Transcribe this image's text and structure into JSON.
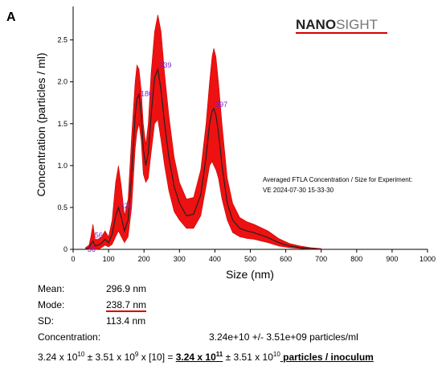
{
  "panel_label": "A",
  "logo": {
    "bold": "NANO",
    "light": "SIGHT"
  },
  "annotation": {
    "line1": "Averaged FTLA Concentration / Size for Experiment:",
    "line2": "VE 2024-07-30 15-33-30"
  },
  "stats": [
    {
      "label": "Mean:",
      "value": "296.9 nm"
    },
    {
      "label": "Mode:",
      "value": "238.7 nm"
    },
    {
      "label": "SD:",
      "value": "113.4 nm"
    }
  ],
  "concentration": {
    "label": "Concentration:",
    "value": "3.24e+10 +/- 3.51e+09 particles/ml"
  },
  "formula": {
    "a_mant": "3.24 x 10",
    "a_exp": "10",
    "pm1": " ± ",
    "b_mant": "3.51 x 10",
    "b_exp": "9",
    "mult": " x [10] = ",
    "c_mant": "3.24 x 10",
    "c_exp": "11",
    "pm2": " ± ",
    "d_mant": "3.51 x 10",
    "d_exp": "10",
    "tail": " particles / inoculum"
  },
  "colors": {
    "band": "#ee1111",
    "mean_line": "#222222",
    "peak_label": "#7a1fd6",
    "underline": "#d40000"
  },
  "chart_data": {
    "type": "line",
    "xlabel": "Size (nm)",
    "ylabel": "Concentration (particles / ml)",
    "xlim": [
      0,
      1000
    ],
    "ylim": [
      0,
      2.9
    ],
    "x_ticks": [
      0,
      100,
      200,
      300,
      400,
      500,
      600,
      700,
      800,
      900,
      1000
    ],
    "y_ticks": [
      0,
      0.5,
      1.0,
      1.5,
      2.0,
      2.5
    ],
    "y_tick_labels": [
      "0",
      "0.5",
      "1.0",
      "1.5",
      "2.0",
      "2.5"
    ],
    "series": [
      {
        "x": [
          35,
          45,
          50,
          56,
          62,
          70,
          80,
          90,
          100,
          110,
          120,
          128,
          136,
          145,
          155,
          165,
          175,
          180,
          186,
          192,
          198,
          205,
          212,
          220,
          230,
          239,
          248,
          258,
          270,
          285,
          300,
          320,
          340,
          360,
          375,
          385,
          392,
          397,
          403,
          410,
          420,
          435,
          450,
          470,
          490,
          510,
          530,
          550,
          580,
          610,
          640,
          670,
          700
        ],
        "y": [
          0,
          0.02,
          0.06,
          0.1,
          0.04,
          0.05,
          0.07,
          0.12,
          0.08,
          0.18,
          0.4,
          0.5,
          0.38,
          0.22,
          0.35,
          0.9,
          1.6,
          1.8,
          1.85,
          1.6,
          1.2,
          1.0,
          1.15,
          1.6,
          2.05,
          2.15,
          1.9,
          1.5,
          1.1,
          0.75,
          0.55,
          0.4,
          0.42,
          0.65,
          1.1,
          1.5,
          1.65,
          1.68,
          1.6,
          1.4,
          1.0,
          0.55,
          0.35,
          0.25,
          0.22,
          0.2,
          0.17,
          0.14,
          0.08,
          0.04,
          0.02,
          0.01,
          0
        ],
        "upper": [
          0.02,
          0.05,
          0.15,
          0.3,
          0.12,
          0.12,
          0.15,
          0.22,
          0.15,
          0.35,
          0.8,
          1.0,
          0.75,
          0.4,
          0.6,
          1.35,
          2.0,
          2.2,
          2.15,
          1.9,
          1.5,
          1.25,
          1.5,
          2.1,
          2.6,
          2.8,
          2.6,
          2.1,
          1.6,
          1.1,
          0.8,
          0.6,
          0.62,
          0.95,
          1.5,
          2.0,
          2.3,
          2.4,
          2.3,
          2.0,
          1.5,
          0.85,
          0.55,
          0.38,
          0.33,
          0.3,
          0.26,
          0.22,
          0.13,
          0.07,
          0.04,
          0.02,
          0.01
        ],
        "lower": [
          0,
          0,
          0,
          0,
          0,
          0,
          0.02,
          0.05,
          0.03,
          0.06,
          0.15,
          0.22,
          0.15,
          0.08,
          0.15,
          0.5,
          1.2,
          1.4,
          1.5,
          1.3,
          0.9,
          0.8,
          0.85,
          1.15,
          1.5,
          1.55,
          1.3,
          1.0,
          0.7,
          0.45,
          0.35,
          0.25,
          0.25,
          0.4,
          0.75,
          1.0,
          1.05,
          1.0,
          0.95,
          0.85,
          0.6,
          0.35,
          0.2,
          0.15,
          0.13,
          0.12,
          0.1,
          0.08,
          0.04,
          0.02,
          0.01,
          0,
          0
        ]
      }
    ],
    "peak_labels": [
      {
        "text": "36",
        "x": 36,
        "y": 0.0
      },
      {
        "text": "56",
        "x": 56,
        "y": 0.17
      },
      {
        "text": "128",
        "x": 128,
        "y": 0.52
      },
      {
        "text": "186",
        "x": 186,
        "y": 1.86
      },
      {
        "text": "239",
        "x": 239,
        "y": 2.2
      },
      {
        "text": "397",
        "x": 397,
        "y": 1.73
      }
    ]
  }
}
